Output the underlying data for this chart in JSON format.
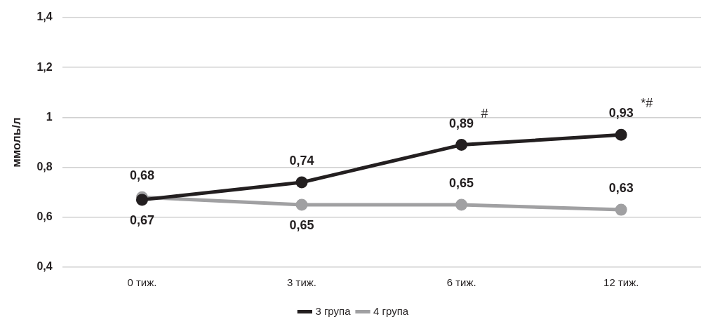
{
  "chart_data": {
    "type": "line",
    "ylabel": "ммоль/л",
    "categories": [
      "0 тиж.",
      "3 тиж.",
      "6 тиж.",
      "12 тиж."
    ],
    "series": [
      {
        "name": "3 група",
        "color": "#231f20",
        "values": [
          0.67,
          0.74,
          0.89,
          0.93
        ],
        "value_labels": [
          "0,67",
          "0,74",
          "0,89",
          "0,93"
        ]
      },
      {
        "name": "4 група",
        "color": "#a0a0a2",
        "values": [
          0.68,
          0.65,
          0.65,
          0.63
        ],
        "value_labels": [
          "0,68",
          "0,65",
          "0,65",
          "0,63"
        ]
      }
    ],
    "ylim": [
      0.4,
      1.4
    ],
    "yticks": [
      {
        "value": 0.4,
        "label": "0,4"
      },
      {
        "value": 0.6,
        "label": "0,6"
      },
      {
        "value": 0.8,
        "label": "0,8"
      },
      {
        "value": 1,
        "label": "1"
      },
      {
        "value": 1.2,
        "label": "1,2"
      },
      {
        "value": 1.4,
        "label": "1,4"
      }
    ],
    "annotations": [
      {
        "text": "#",
        "x": "6 тиж.",
        "y": 0.89
      },
      {
        "text": "*#",
        "x": "12 тиж.",
        "y": 0.93
      }
    ],
    "grid": "y",
    "legend": "bottom",
    "marker": "circle",
    "line_style": "solid"
  }
}
